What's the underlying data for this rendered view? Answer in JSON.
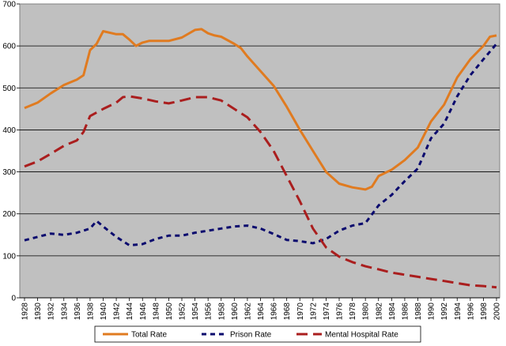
{
  "chart_data": {
    "type": "line",
    "title": "",
    "xlabel": "",
    "ylabel": "",
    "ylim": [
      0,
      700
    ],
    "yticks": [
      0,
      100,
      200,
      300,
      400,
      500,
      600,
      700
    ],
    "xlim": [
      1928,
      2000
    ],
    "xticks": [
      1928,
      1930,
      1932,
      1934,
      1936,
      1938,
      1940,
      1942,
      1944,
      1946,
      1948,
      1950,
      1952,
      1954,
      1956,
      1958,
      1960,
      1962,
      1964,
      1966,
      1968,
      1970,
      1972,
      1974,
      1976,
      1978,
      1980,
      1982,
      1984,
      1986,
      1988,
      1990,
      1992,
      1994,
      1996,
      1998,
      2000
    ],
    "grid": "horizontal",
    "legend_position": "bottom",
    "plot_background": "#c0c0c0",
    "series": [
      {
        "name": "Total Rate",
        "color": "#e07b20",
        "dash": "solid",
        "x": [
          1928,
          1930,
          1932,
          1934,
          1936,
          1937,
          1938,
          1939,
          1940,
          1942,
          1943,
          1944,
          1945,
          1946,
          1947,
          1948,
          1950,
          1952,
          1954,
          1955,
          1956,
          1957,
          1958,
          1960,
          1961,
          1962,
          1964,
          1966,
          1968,
          1970,
          1972,
          1974,
          1976,
          1978,
          1980,
          1981,
          1982,
          1984,
          1986,
          1988,
          1990,
          1992,
          1994,
          1996,
          1998,
          1999,
          2000
        ],
        "values": [
          452,
          465,
          487,
          507,
          520,
          530,
          590,
          605,
          635,
          628,
          628,
          615,
          600,
          608,
          612,
          612,
          612,
          620,
          638,
          640,
          630,
          625,
          622,
          605,
          595,
          575,
          540,
          505,
          455,
          400,
          350,
          300,
          272,
          263,
          258,
          265,
          290,
          305,
          328,
          358,
          420,
          460,
          525,
          568,
          600,
          622,
          625
        ]
      },
      {
        "name": "Prison Rate",
        "color": "#0b0b6e",
        "dash": "dashed",
        "x": [
          1928,
          1930,
          1932,
          1934,
          1936,
          1938,
          1939,
          1940,
          1942,
          1944,
          1946,
          1948,
          1950,
          1952,
          1954,
          1956,
          1958,
          1960,
          1962,
          1964,
          1966,
          1968,
          1970,
          1972,
          1974,
          1976,
          1978,
          1980,
          1982,
          1984,
          1986,
          1988,
          1990,
          1992,
          1994,
          1996,
          1998,
          2000
        ],
        "values": [
          137,
          145,
          153,
          150,
          155,
          165,
          183,
          170,
          145,
          125,
          128,
          140,
          148,
          148,
          155,
          160,
          165,
          170,
          172,
          165,
          152,
          138,
          135,
          130,
          140,
          160,
          172,
          178,
          220,
          245,
          278,
          308,
          380,
          415,
          480,
          530,
          568,
          605
        ]
      },
      {
        "name": "Mental Hospital Rate",
        "color": "#aa1e1e",
        "dash": "dashed",
        "x": [
          1928,
          1930,
          1932,
          1934,
          1936,
          1937,
          1938,
          1940,
          1942,
          1943,
          1944,
          1946,
          1948,
          1950,
          1952,
          1954,
          1956,
          1958,
          1960,
          1962,
          1964,
          1966,
          1968,
          1970,
          1972,
          1974,
          1976,
          1978,
          1980,
          1982,
          1984,
          1986,
          1988,
          1990,
          1992,
          1994,
          1996,
          1998,
          2000
        ],
        "values": [
          313,
          325,
          343,
          362,
          375,
          395,
          433,
          450,
          465,
          478,
          480,
          475,
          468,
          463,
          470,
          478,
          478,
          470,
          450,
          430,
          395,
          350,
          290,
          230,
          165,
          120,
          98,
          85,
          75,
          68,
          60,
          55,
          50,
          45,
          40,
          35,
          30,
          28,
          25
        ]
      }
    ]
  }
}
